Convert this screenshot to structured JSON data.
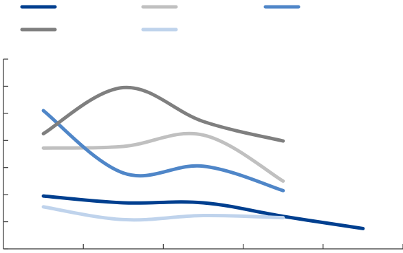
{
  "chart_data": {
    "type": "line",
    "x": [
      1,
      2,
      3,
      4,
      5
    ],
    "xlim": [
      0.5,
      5.5
    ],
    "ylim": [
      0,
      7
    ],
    "grid": false,
    "legend_position": "top-left",
    "series": [
      {
        "values": [
          1.95,
          1.7,
          1.7,
          1.2,
          0.75
        ],
        "color": "#003f8f"
      },
      {
        "values": [
          3.72,
          3.78,
          4.2,
          2.5,
          null
        ],
        "color": "#c0c0c0"
      },
      {
        "values": [
          5.1,
          2.8,
          3.05,
          2.15,
          null
        ],
        "color": "#4f86c8"
      },
      {
        "values": [
          4.25,
          5.95,
          4.7,
          3.98,
          null
        ],
        "color": "#7f7f7f"
      },
      {
        "values": [
          1.55,
          1.08,
          1.23,
          1.15,
          null
        ],
        "color": "#bfd3ec"
      }
    ]
  }
}
